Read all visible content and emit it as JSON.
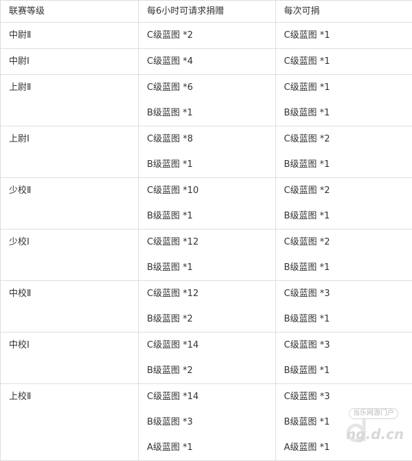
{
  "header": [
    "联赛等级",
    "每6小时可请求捐赠",
    "每次可捐"
  ],
  "rows": [
    {
      "rank": "中尉Ⅱ",
      "request": [
        "C级蓝图 *2"
      ],
      "donate": [
        "C级蓝图 *1"
      ]
    },
    {
      "rank": "中尉Ⅰ",
      "request": [
        "C级蓝图 *4"
      ],
      "donate": [
        "C级蓝图 *1"
      ]
    },
    {
      "rank": "上尉Ⅱ",
      "request": [
        "C级蓝图 *6",
        "B级蓝图 *1"
      ],
      "donate": [
        "C级蓝图 *1",
        "B级蓝图 *1"
      ]
    },
    {
      "rank": "上尉Ⅰ",
      "request": [
        "C级蓝图 *8",
        "B级蓝图 *1"
      ],
      "donate": [
        "C级蓝图 *2",
        "B级蓝图 *1"
      ]
    },
    {
      "rank": "少校Ⅱ",
      "request": [
        "C级蓝图 *10",
        "B级蓝图 *1"
      ],
      "donate": [
        "C级蓝图 *2",
        "B级蓝图 *1"
      ]
    },
    {
      "rank": "少校Ⅰ",
      "request": [
        "C级蓝图 *12",
        "B级蓝图 *1"
      ],
      "donate": [
        "C级蓝图 *2",
        "B级蓝图 *1"
      ]
    },
    {
      "rank": "中校Ⅱ",
      "request": [
        "C级蓝图 *12",
        "B级蓝图 *2"
      ],
      "donate": [
        "C级蓝图 *3",
        "B级蓝图 *1"
      ]
    },
    {
      "rank": "中校Ⅰ",
      "request": [
        "C级蓝图 *14",
        "B级蓝图 *2"
      ],
      "donate": [
        "C级蓝图 *3",
        "B级蓝图 *1"
      ]
    },
    {
      "rank": "上校Ⅱ",
      "request": [
        "C级蓝图 *14",
        "B级蓝图 *3",
        "A级蓝图 *1"
      ],
      "donate": [
        "C级蓝图 *3",
        "B级蓝图 *1",
        "A级蓝图 *1"
      ]
    }
  ],
  "watermark": {
    "tag": "当乐网游门户",
    "url": "ng.d.cn",
    "logo": "d"
  }
}
